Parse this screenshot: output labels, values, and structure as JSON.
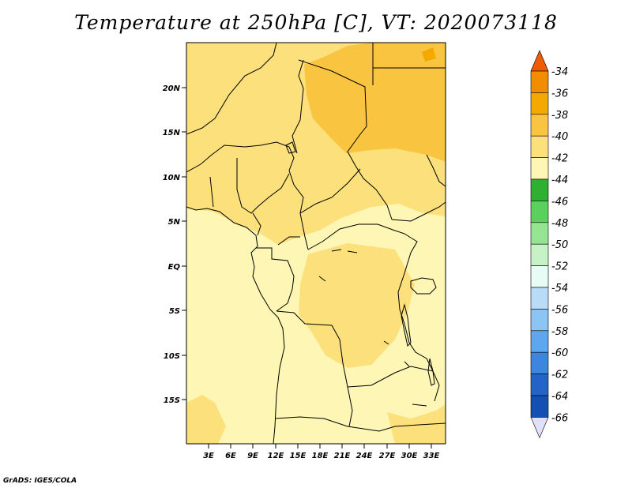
{
  "title": "Temperature at 250hPa [C], VT: 2020073118",
  "credit": "GrADS: IGES/COLA",
  "lat_ticks": [
    "20N",
    "15N",
    "10N",
    "5N",
    "EQ",
    "5S",
    "10S",
    "15S"
  ],
  "lon_ticks": [
    "3E",
    "6E",
    "9E",
    "12E",
    "15E",
    "18E",
    "21E",
    "24E",
    "27E",
    "30E",
    "33E"
  ],
  "colorbar": {
    "labels": [
      "-34",
      "-36",
      "-38",
      "-40",
      "-42",
      "-44",
      "-46",
      "-48",
      "-50",
      "-52",
      "-54",
      "-56",
      "-58",
      "-60",
      "-62",
      "-64",
      "-66"
    ],
    "colors": [
      "#f05a00",
      "#f28c00",
      "#f5a800",
      "#f9c440",
      "#fbe07c",
      "#fdf6b4",
      "#30b030",
      "#5cd05c",
      "#94e494",
      "#c6f2c6",
      "#e8fcf6",
      "#b8dcf8",
      "#8cc4f4",
      "#5ea6ee",
      "#3c86e0",
      "#2464c8",
      "#1450b4",
      "#0a1470",
      "#e0e0fa"
    ]
  },
  "fields": {
    "-42": "#fdf6b4",
    "-41": "#fbe07c",
    "-39": "#f9c440",
    "-37": "#f5a800"
  }
}
